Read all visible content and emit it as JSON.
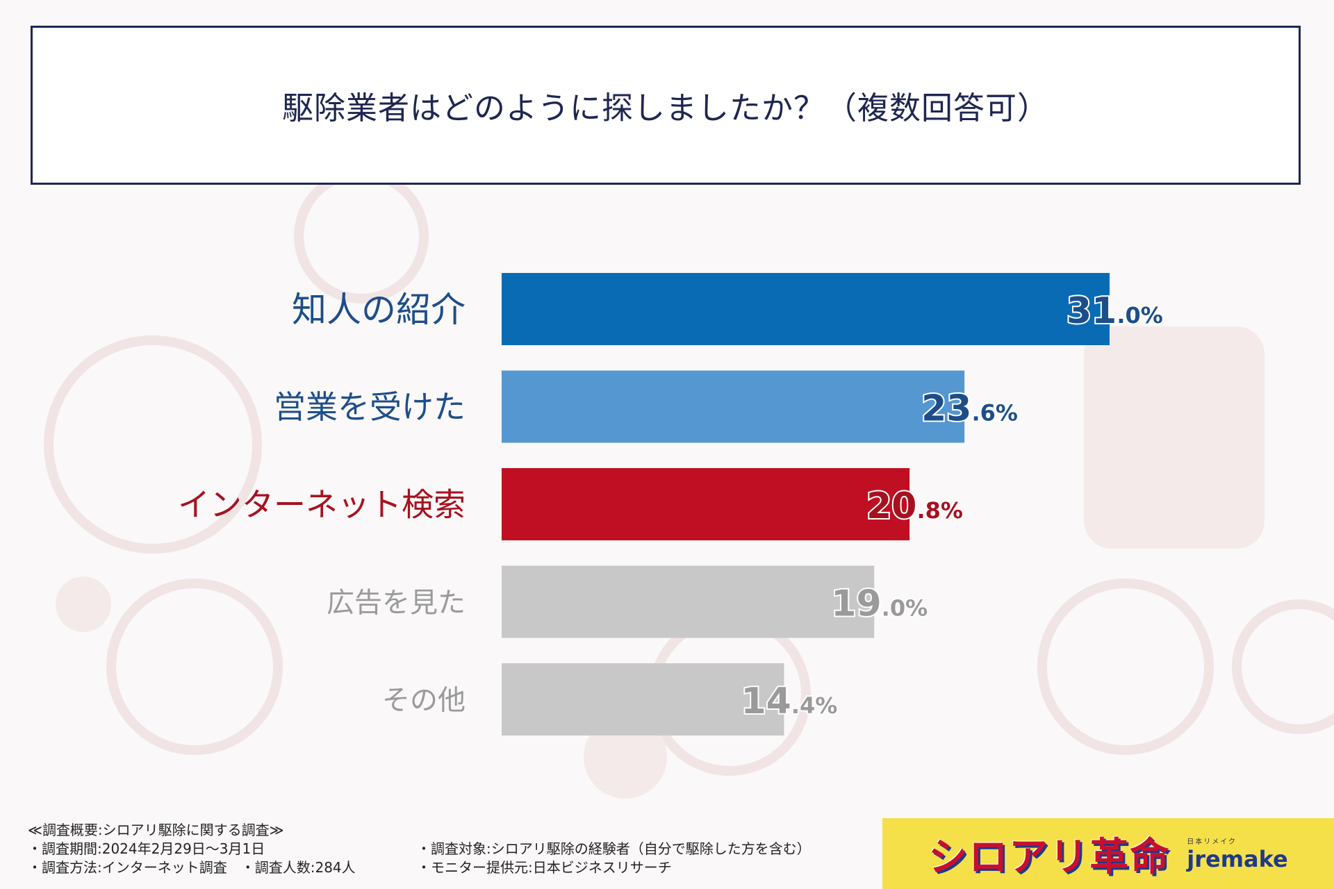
{
  "title": "駆除業者はどのように探しましたか？（複数回答可）",
  "chart_data": {
    "type": "bar",
    "orientation": "horizontal",
    "categories": [
      "知人の紹介",
      "営業を受けた",
      "インターネット検索",
      "広告を見た",
      "その他"
    ],
    "values": [
      31.0,
      23.6,
      20.8,
      19.0,
      14.4
    ],
    "value_labels": [
      {
        "int": "31",
        "dec": ".0%"
      },
      {
        "int": "23",
        "dec": ".6%"
      },
      {
        "int": "20",
        "dec": ".8%"
      },
      {
        "int": "19",
        "dec": ".0%"
      },
      {
        "int": "14",
        "dec": ".4%"
      }
    ],
    "bar_colors": [
      "#0a6bb5",
      "#5597d0",
      "#c00f22",
      "#c8c8c8",
      "#c8c8c8"
    ],
    "label_colors": [
      "#1d4e89",
      "#1d4e89",
      "#a6111f",
      "#9a9a9a",
      "#9a9a9a"
    ],
    "value_text_colors": [
      "#1d4e89",
      "#1d4e89",
      "#a6111f",
      "#9a9a9a",
      "#9a9a9a"
    ],
    "xlim": [
      0,
      31
    ]
  },
  "footer": {
    "survey_heading": "≪調査概要:シロアリ駆除に関する調査≫",
    "period": "・調査期間:2024年2月29日～3月1日",
    "method": "・調査方法:インターネット調査　・調査人数:284人",
    "target": "・調査対象:シロアリ駆除の経験者（自分で駆除した方を含む）",
    "provider": "・モニター提供元:日本ビジネスリサーチ"
  },
  "brand": {
    "name": "シロアリ革命",
    "ruby": "日本リメイク",
    "logo_text": "jremake",
    "color": "#c8102e"
  }
}
